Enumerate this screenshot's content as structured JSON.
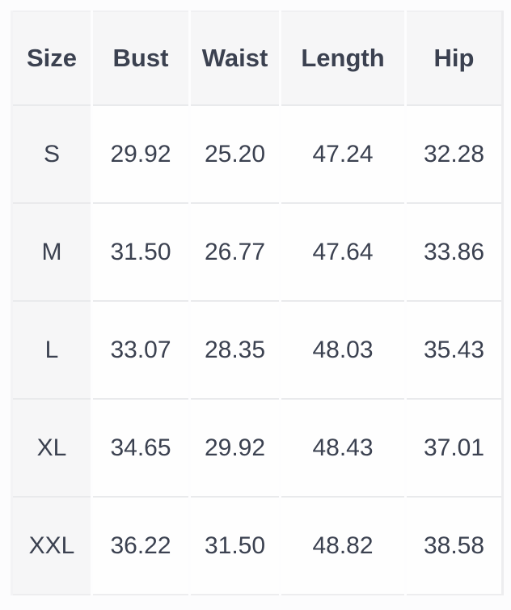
{
  "size_chart": {
    "columns": [
      "Size",
      "Bust",
      "Waist",
      "Length",
      "Hip"
    ],
    "rows": [
      {
        "size": "S",
        "bust": "29.92",
        "waist": "25.20",
        "length": "47.24",
        "hip": "32.28"
      },
      {
        "size": "M",
        "bust": "31.50",
        "waist": "26.77",
        "length": "47.64",
        "hip": "33.86"
      },
      {
        "size": "L",
        "bust": "33.07",
        "waist": "28.35",
        "length": "48.03",
        "hip": "35.43"
      },
      {
        "size": "XL",
        "bust": "34.65",
        "waist": "29.92",
        "length": "48.43",
        "hip": "37.01"
      },
      {
        "size": "XXL",
        "bust": "36.22",
        "waist": "31.50",
        "length": "48.82",
        "hip": "38.58"
      }
    ],
    "colors": {
      "header_cell_bg": "#f6f6f7",
      "data_cell_bg": "#fefefe",
      "row_border": "#e9eaec",
      "column_border": "#fdfdfe",
      "text": "#3b4150",
      "page_bg": "#fcfcfd"
    }
  },
  "chart_data": {
    "type": "table",
    "columns": [
      "Size",
      "Bust",
      "Waist",
      "Length",
      "Hip"
    ],
    "rows": [
      [
        "S",
        "29.92",
        "25.20",
        "47.24",
        "32.28"
      ],
      [
        "M",
        "31.50",
        "26.77",
        "47.64",
        "33.86"
      ],
      [
        "L",
        "33.07",
        "28.35",
        "48.03",
        "35.43"
      ],
      [
        "XL",
        "34.65",
        "29.92",
        "48.43",
        "37.01"
      ],
      [
        "XXL",
        "36.22",
        "31.50",
        "48.82",
        "38.58"
      ]
    ]
  }
}
